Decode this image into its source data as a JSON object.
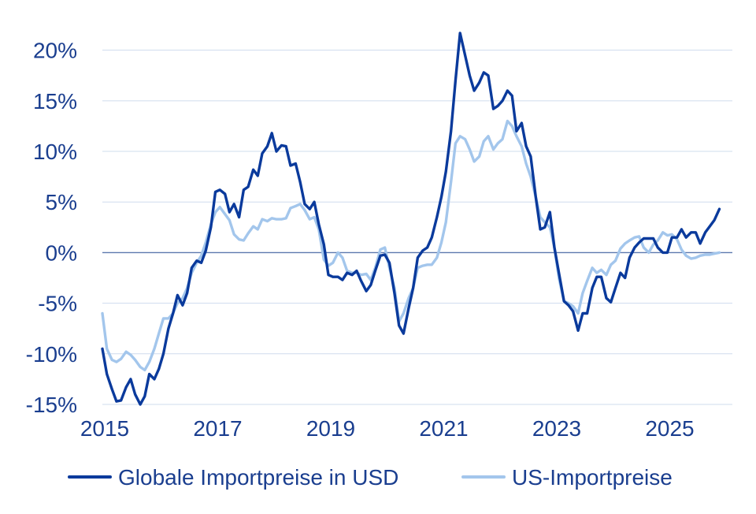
{
  "chart_data": {
    "type": "line",
    "title": "",
    "xlabel": "",
    "ylabel": "",
    "xlim": [
      2015,
      2026.15
    ],
    "ylim": [
      -15,
      22
    ],
    "x_ticks": [
      {
        "value": 2015,
        "label": "2015"
      },
      {
        "value": 2017,
        "label": "2017"
      },
      {
        "value": 2019,
        "label": "2019"
      },
      {
        "value": 2021,
        "label": "2021"
      },
      {
        "value": 2023,
        "label": "2023"
      },
      {
        "value": 2025,
        "label": "2025"
      }
    ],
    "y_ticks": [
      {
        "value": 20,
        "label": "20%"
      },
      {
        "value": 15,
        "label": "15%"
      },
      {
        "value": 10,
        "label": "10%"
      },
      {
        "value": 5,
        "label": "5%"
      },
      {
        "value": 0,
        "label": "0%"
      },
      {
        "value": -5,
        "label": "-5%"
      },
      {
        "value": -10,
        "label": "-10%"
      },
      {
        "value": -15,
        "label": "-15%"
      }
    ],
    "grid": true,
    "legend_position": "bottom",
    "series": [
      {
        "name": "Globale Importpreise in USD",
        "color": "#0a3a9c",
        "points": [
          [
            2015.0,
            -9.5
          ],
          [
            2015.08,
            -12.0
          ],
          [
            2015.17,
            -13.5
          ],
          [
            2015.25,
            -14.7
          ],
          [
            2015.33,
            -14.6
          ],
          [
            2015.42,
            -13.3
          ],
          [
            2015.5,
            -12.5
          ],
          [
            2015.58,
            -14.0
          ],
          [
            2015.67,
            -15.0
          ],
          [
            2015.75,
            -14.2
          ],
          [
            2015.83,
            -12.0
          ],
          [
            2015.92,
            -12.5
          ],
          [
            2016.0,
            -11.5
          ],
          [
            2016.08,
            -10.0
          ],
          [
            2016.17,
            -7.5
          ],
          [
            2016.25,
            -6.0
          ],
          [
            2016.33,
            -4.2
          ],
          [
            2016.42,
            -5.2
          ],
          [
            2016.5,
            -4.0
          ],
          [
            2016.58,
            -1.5
          ],
          [
            2016.67,
            -0.8
          ],
          [
            2016.75,
            -1.0
          ],
          [
            2016.83,
            0.2
          ],
          [
            2016.92,
            2.5
          ],
          [
            2017.0,
            6.0
          ],
          [
            2017.08,
            6.2
          ],
          [
            2017.17,
            5.8
          ],
          [
            2017.25,
            4.0
          ],
          [
            2017.33,
            4.8
          ],
          [
            2017.42,
            3.5
          ],
          [
            2017.5,
            6.2
          ],
          [
            2017.58,
            6.5
          ],
          [
            2017.67,
            8.2
          ],
          [
            2017.75,
            7.6
          ],
          [
            2017.83,
            9.8
          ],
          [
            2017.92,
            10.5
          ],
          [
            2018.0,
            11.8
          ],
          [
            2018.08,
            10.0
          ],
          [
            2018.17,
            10.6
          ],
          [
            2018.25,
            10.5
          ],
          [
            2018.33,
            8.6
          ],
          [
            2018.42,
            8.8
          ],
          [
            2018.5,
            7.0
          ],
          [
            2018.58,
            4.8
          ],
          [
            2018.67,
            4.3
          ],
          [
            2018.75,
            5.0
          ],
          [
            2018.83,
            2.8
          ],
          [
            2018.92,
            0.8
          ],
          [
            2019.0,
            -2.2
          ],
          [
            2019.08,
            -2.4
          ],
          [
            2019.17,
            -2.4
          ],
          [
            2019.25,
            -2.7
          ],
          [
            2019.33,
            -2.0
          ],
          [
            2019.42,
            -2.2
          ],
          [
            2019.5,
            -1.8
          ],
          [
            2019.58,
            -2.8
          ],
          [
            2019.67,
            -3.8
          ],
          [
            2019.75,
            -3.2
          ],
          [
            2019.83,
            -1.8
          ],
          [
            2019.92,
            -0.3
          ],
          [
            2020.0,
            -0.2
          ],
          [
            2020.08,
            -1.0
          ],
          [
            2020.17,
            -4.0
          ],
          [
            2020.25,
            -7.2
          ],
          [
            2020.33,
            -8.0
          ],
          [
            2020.42,
            -5.5
          ],
          [
            2020.5,
            -3.5
          ],
          [
            2020.58,
            -0.5
          ],
          [
            2020.67,
            0.2
          ],
          [
            2020.75,
            0.5
          ],
          [
            2020.83,
            1.5
          ],
          [
            2020.92,
            3.5
          ],
          [
            2021.0,
            5.5
          ],
          [
            2021.08,
            8.0
          ],
          [
            2021.17,
            12.0
          ],
          [
            2021.25,
            17.0
          ],
          [
            2021.33,
            21.7
          ],
          [
            2021.42,
            19.5
          ],
          [
            2021.5,
            17.5
          ],
          [
            2021.58,
            16.0
          ],
          [
            2021.67,
            16.8
          ],
          [
            2021.75,
            17.8
          ],
          [
            2021.83,
            17.5
          ],
          [
            2021.92,
            14.2
          ],
          [
            2022.0,
            14.5
          ],
          [
            2022.08,
            15.0
          ],
          [
            2022.17,
            16.0
          ],
          [
            2022.25,
            15.5
          ],
          [
            2022.33,
            12.0
          ],
          [
            2022.42,
            12.8
          ],
          [
            2022.5,
            10.5
          ],
          [
            2022.58,
            9.5
          ],
          [
            2022.67,
            5.5
          ],
          [
            2022.75,
            2.3
          ],
          [
            2022.83,
            2.5
          ],
          [
            2022.92,
            4.0
          ],
          [
            2023.0,
            0.5
          ],
          [
            2023.08,
            -2.0
          ],
          [
            2023.17,
            -4.8
          ],
          [
            2023.25,
            -5.2
          ],
          [
            2023.33,
            -5.8
          ],
          [
            2023.42,
            -7.7
          ],
          [
            2023.5,
            -6.0
          ],
          [
            2023.58,
            -6.0
          ],
          [
            2023.67,
            -3.5
          ],
          [
            2023.75,
            -2.4
          ],
          [
            2023.83,
            -2.4
          ],
          [
            2023.92,
            -4.5
          ],
          [
            2024.0,
            -4.9
          ],
          [
            2024.08,
            -3.5
          ],
          [
            2024.17,
            -2.0
          ],
          [
            2024.25,
            -2.5
          ],
          [
            2024.33,
            -0.5
          ],
          [
            2024.42,
            0.5
          ],
          [
            2024.5,
            1.0
          ],
          [
            2024.58,
            1.4
          ],
          [
            2024.67,
            1.4
          ],
          [
            2024.75,
            1.4
          ],
          [
            2024.83,
            0.5
          ],
          [
            2024.92,
            0.0
          ],
          [
            2025.0,
            0.0
          ],
          [
            2025.08,
            1.5
          ],
          [
            2025.17,
            1.5
          ],
          [
            2025.25,
            2.3
          ],
          [
            2025.33,
            1.5
          ],
          [
            2025.42,
            2.0
          ],
          [
            2025.5,
            2.0
          ],
          [
            2025.58,
            0.9
          ],
          [
            2025.67,
            2.0
          ],
          [
            2025.75,
            2.6
          ],
          [
            2025.83,
            3.2
          ],
          [
            2025.92,
            4.3
          ]
        ]
      },
      {
        "name": "US-Importpreise",
        "color": "#a3c6ec",
        "points": [
          [
            2015.0,
            -6.0
          ],
          [
            2015.08,
            -9.5
          ],
          [
            2015.17,
            -10.6
          ],
          [
            2015.25,
            -10.8
          ],
          [
            2015.33,
            -10.5
          ],
          [
            2015.42,
            -9.8
          ],
          [
            2015.5,
            -10.1
          ],
          [
            2015.58,
            -10.6
          ],
          [
            2015.67,
            -11.3
          ],
          [
            2015.75,
            -11.6
          ],
          [
            2015.83,
            -10.8
          ],
          [
            2015.92,
            -9.5
          ],
          [
            2016.0,
            -8.0
          ],
          [
            2016.08,
            -6.5
          ],
          [
            2016.17,
            -6.5
          ],
          [
            2016.25,
            -6.0
          ],
          [
            2016.33,
            -5.0
          ],
          [
            2016.42,
            -4.5
          ],
          [
            2016.5,
            -3.5
          ],
          [
            2016.58,
            -2.0
          ],
          [
            2016.67,
            -1.0
          ],
          [
            2016.75,
            -0.3
          ],
          [
            2016.83,
            1.0
          ],
          [
            2016.92,
            2.8
          ],
          [
            2017.0,
            4.0
          ],
          [
            2017.08,
            4.5
          ],
          [
            2017.17,
            3.8
          ],
          [
            2017.25,
            3.2
          ],
          [
            2017.33,
            1.8
          ],
          [
            2017.42,
            1.3
          ],
          [
            2017.5,
            1.2
          ],
          [
            2017.58,
            1.9
          ],
          [
            2017.67,
            2.6
          ],
          [
            2017.75,
            2.3
          ],
          [
            2017.83,
            3.3
          ],
          [
            2017.92,
            3.1
          ],
          [
            2018.0,
            3.4
          ],
          [
            2018.08,
            3.3
          ],
          [
            2018.17,
            3.3
          ],
          [
            2018.25,
            3.4
          ],
          [
            2018.33,
            4.4
          ],
          [
            2018.42,
            4.6
          ],
          [
            2018.5,
            4.8
          ],
          [
            2018.58,
            4.2
          ],
          [
            2018.67,
            3.3
          ],
          [
            2018.75,
            3.5
          ],
          [
            2018.83,
            2.3
          ],
          [
            2018.92,
            -0.7
          ],
          [
            2019.0,
            -1.3
          ],
          [
            2019.08,
            -1.0
          ],
          [
            2019.17,
            0.0
          ],
          [
            2019.25,
            -0.5
          ],
          [
            2019.33,
            -1.8
          ],
          [
            2019.42,
            -2.0
          ],
          [
            2019.5,
            -2.0
          ],
          [
            2019.58,
            -2.2
          ],
          [
            2019.67,
            -2.1
          ],
          [
            2019.75,
            -2.7
          ],
          [
            2019.83,
            -1.5
          ],
          [
            2019.92,
            0.3
          ],
          [
            2020.0,
            0.5
          ],
          [
            2020.08,
            -1.5
          ],
          [
            2020.17,
            -3.5
          ],
          [
            2020.25,
            -6.8
          ],
          [
            2020.33,
            -6.0
          ],
          [
            2020.42,
            -4.5
          ],
          [
            2020.5,
            -3.5
          ],
          [
            2020.58,
            -1.5
          ],
          [
            2020.67,
            -1.3
          ],
          [
            2020.75,
            -1.2
          ],
          [
            2020.83,
            -1.2
          ],
          [
            2020.92,
            -0.5
          ],
          [
            2021.0,
            1.0
          ],
          [
            2021.08,
            3.0
          ],
          [
            2021.17,
            7.0
          ],
          [
            2021.25,
            10.8
          ],
          [
            2021.33,
            11.5
          ],
          [
            2021.42,
            11.2
          ],
          [
            2021.5,
            10.2
          ],
          [
            2021.58,
            9.0
          ],
          [
            2021.67,
            9.5
          ],
          [
            2021.75,
            11.0
          ],
          [
            2021.83,
            11.5
          ],
          [
            2021.92,
            10.2
          ],
          [
            2022.0,
            10.8
          ],
          [
            2022.08,
            11.2
          ],
          [
            2022.17,
            13.0
          ],
          [
            2022.25,
            12.5
          ],
          [
            2022.33,
            11.5
          ],
          [
            2022.42,
            10.5
          ],
          [
            2022.5,
            8.8
          ],
          [
            2022.58,
            7.5
          ],
          [
            2022.67,
            5.5
          ],
          [
            2022.75,
            3.5
          ],
          [
            2022.83,
            3.0
          ],
          [
            2022.92,
            2.5
          ],
          [
            2023.0,
            0.5
          ],
          [
            2023.08,
            -2.5
          ],
          [
            2023.17,
            -4.8
          ],
          [
            2023.25,
            -5.0
          ],
          [
            2023.33,
            -5.3
          ],
          [
            2023.42,
            -6.0
          ],
          [
            2023.5,
            -4.0
          ],
          [
            2023.58,
            -2.8
          ],
          [
            2023.67,
            -1.5
          ],
          [
            2023.75,
            -2.0
          ],
          [
            2023.83,
            -1.7
          ],
          [
            2023.92,
            -2.2
          ],
          [
            2024.0,
            -1.2
          ],
          [
            2024.08,
            -0.8
          ],
          [
            2024.17,
            0.4
          ],
          [
            2024.25,
            0.9
          ],
          [
            2024.33,
            1.2
          ],
          [
            2024.42,
            1.5
          ],
          [
            2024.5,
            1.6
          ],
          [
            2024.58,
            0.5
          ],
          [
            2024.67,
            0.0
          ],
          [
            2024.75,
            0.8
          ],
          [
            2024.83,
            1.2
          ],
          [
            2024.92,
            2.0
          ],
          [
            2025.0,
            1.7
          ],
          [
            2025.08,
            1.8
          ],
          [
            2025.17,
            1.3
          ],
          [
            2025.25,
            0.3
          ],
          [
            2025.33,
            -0.3
          ],
          [
            2025.42,
            -0.6
          ],
          [
            2025.5,
            -0.5
          ],
          [
            2025.58,
            -0.3
          ],
          [
            2025.67,
            -0.2
          ],
          [
            2025.75,
            -0.2
          ],
          [
            2025.83,
            -0.1
          ],
          [
            2025.92,
            0.0
          ]
        ]
      }
    ]
  }
}
